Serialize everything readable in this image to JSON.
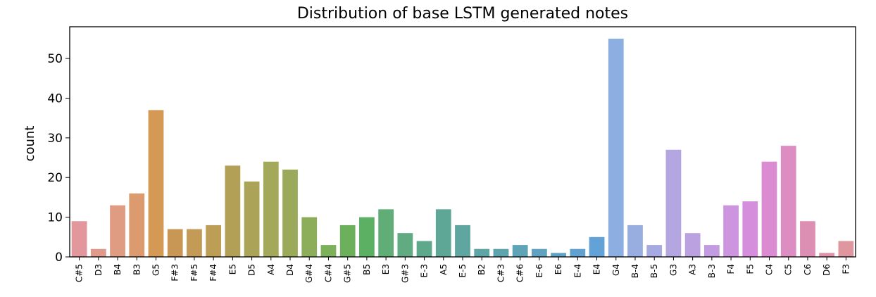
{
  "chart_data": {
    "type": "bar",
    "title": "Distribution of base LSTM generated notes",
    "xlabel": "",
    "ylabel": "count",
    "ylim": [
      0,
      58
    ],
    "yticks": [
      0,
      10,
      20,
      30,
      40,
      50
    ],
    "grid": false,
    "categories": [
      "C#5",
      "D3",
      "B4",
      "B3",
      "G5",
      "F#3",
      "F#5",
      "F#4",
      "E5",
      "D5",
      "A4",
      "D4",
      "G#4",
      "C#4",
      "G#5",
      "B5",
      "E3",
      "G#3",
      "E-3",
      "A5",
      "E-5",
      "B2",
      "C#3",
      "C#6",
      "E-6",
      "E6",
      "E-4",
      "E4",
      "G4",
      "B-4",
      "B-5",
      "G3",
      "A3",
      "B-3",
      "F4",
      "F5",
      "C4",
      "C5",
      "C6",
      "D6",
      "F3"
    ],
    "values": [
      9,
      2,
      13,
      16,
      37,
      7,
      7,
      8,
      23,
      19,
      24,
      22,
      10,
      3,
      8,
      10,
      12,
      6,
      4,
      12,
      8,
      2,
      2,
      3,
      2,
      1,
      2,
      5,
      55,
      8,
      3,
      27,
      6,
      3,
      13,
      14,
      24,
      28,
      9,
      1,
      4
    ],
    "colors": [
      "#e1979b",
      "#e09a8c",
      "#df9c82",
      "#dc9a6f",
      "#d49a55",
      "#c99755",
      "#c39b57",
      "#bc9e57",
      "#b3a057",
      "#aba458",
      "#a3a85a",
      "#9aaa5a",
      "#8cae5a",
      "#7cb05b",
      "#6cb05c",
      "#5cb064",
      "#60ad78",
      "#60ab81",
      "#5ea98c",
      "#5ea797",
      "#5ea69f",
      "#5ea5a6",
      "#5ea4ae",
      "#5fa3b6",
      "#60a2bf",
      "#60a2c7",
      "#61a1cf",
      "#62a2d6",
      "#8daee0",
      "#99aee0",
      "#a6aae0",
      "#b3a6e1",
      "#bba1e0",
      "#c39be0",
      "#cd94df",
      "#d48edb",
      "#da8bd1",
      "#dc8dc2",
      "#dd8fb3",
      "#de93a8",
      "#e0969e"
    ]
  }
}
